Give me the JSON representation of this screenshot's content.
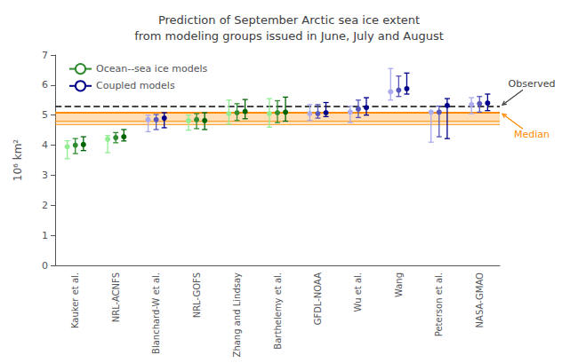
{
  "chart_data": {
    "type": "errorbar",
    "title": "Prediction of September Arctic sea ice extent\nfrom modeling groups issued in June, July and August",
    "ylabel": "10⁶ km²",
    "categories": [
      "Kauker et al.",
      "NRL-ACNFS",
      "Blanchard-W et al.",
      "NRL-GOFS",
      "Zhang and Lindsay",
      "Barthelemy et al.",
      "GFDL-NOAA",
      "Wu et al.",
      "Wang",
      "Peterson et al.",
      "NASA-GMAO"
    ],
    "series": [
      {
        "values": [
          3.95,
          4.2,
          4.85,
          4.82,
          5.05,
          5.05,
          5.05,
          5.1,
          5.78,
          5.1,
          5.35
        ],
        "lo": [
          3.55,
          3.75,
          4.45,
          4.5,
          4.7,
          4.6,
          4.82,
          4.75,
          5.5,
          4.1,
          5.05
        ],
        "hi": [
          4.15,
          4.32,
          5.0,
          5.0,
          5.5,
          5.55,
          5.35,
          5.3,
          6.55,
          5.1,
          5.58
        ],
        "colors": [
          "#90EE90",
          "#90EE90",
          "#AAAAEE",
          "#90EE90",
          "#90EE90",
          "#90EE90",
          "#AAAAEE",
          "#AAAAEE",
          "#AAAAEE",
          "#AAAAEE",
          "#AAAAEE"
        ]
      },
      {
        "values": [
          4.0,
          4.25,
          4.85,
          4.85,
          5.08,
          5.08,
          5.05,
          5.2,
          5.83,
          5.1,
          5.38
        ],
        "lo": [
          3.72,
          4.08,
          4.52,
          4.55,
          4.82,
          4.75,
          4.9,
          4.92,
          5.62,
          4.28,
          5.1
        ],
        "hi": [
          4.22,
          4.42,
          5.02,
          5.05,
          5.38,
          5.48,
          5.35,
          5.5,
          6.3,
          5.3,
          5.62
        ],
        "colors": [
          "#2E8B2E",
          "#2E8B2E",
          "#5555BB",
          "#2E8B2E",
          "#2E8B2E",
          "#2E8B2E",
          "#5555BB",
          "#5555BB",
          "#5555BB",
          "#5555BB",
          "#5555BB"
        ]
      },
      {
        "values": [
          4.02,
          4.28,
          4.9,
          4.82,
          5.12,
          5.1,
          5.08,
          5.25,
          5.88,
          5.32,
          5.4
        ],
        "lo": [
          3.82,
          4.14,
          4.58,
          4.52,
          4.88,
          4.8,
          4.95,
          5.0,
          5.7,
          4.22,
          5.15
        ],
        "hi": [
          4.28,
          4.52,
          5.08,
          5.08,
          5.52,
          5.6,
          5.42,
          5.58,
          6.4,
          5.55,
          5.7
        ],
        "colors": [
          "#006400",
          "#006400",
          "#00008B",
          "#006400",
          "#006400",
          "#006400",
          "#00008B",
          "#00008B",
          "#00008B",
          "#00008B",
          "#00008B"
        ]
      }
    ],
    "marker": "circle",
    "legend": "upper left",
    "legend_entries": [
      {
        "name": "Ocean--sea ice models",
        "color": "#2E8B2E"
      },
      {
        "name": "Coupled models",
        "color": "#00008B"
      }
    ],
    "observed": {
      "value": 5.28,
      "label": "Observed",
      "color": "#444444",
      "line_style": "dashed"
    },
    "median": {
      "values": [
        4.7,
        4.8,
        5.1
      ],
      "label": "Median",
      "color": "#FF8C00"
    },
    "ylim": [
      0,
      7
    ],
    "yticks": [
      0,
      1,
      2,
      3,
      4,
      5,
      6,
      7
    ],
    "grid": false
  }
}
